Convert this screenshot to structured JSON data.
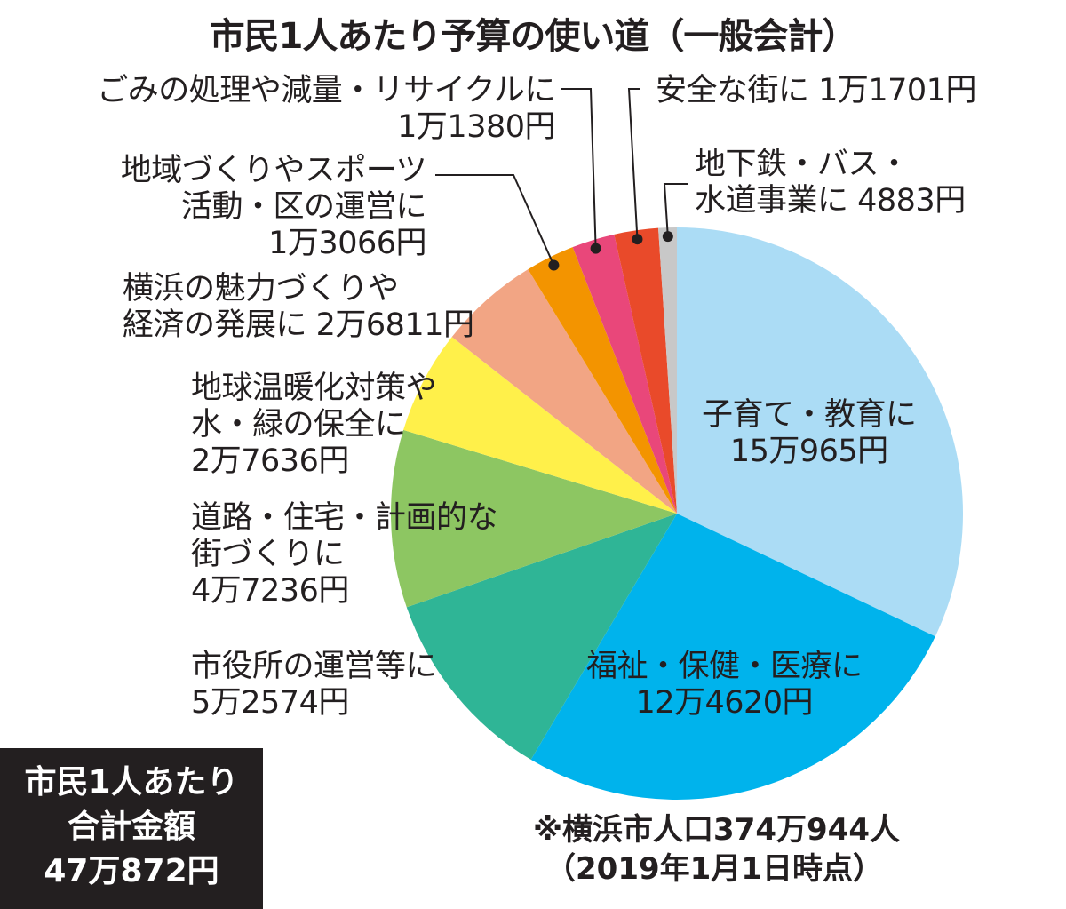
{
  "chart_data": {
    "type": "pie",
    "title": "市民1人あたり予算の使い道（一般会計）",
    "unit": "円",
    "slices": [
      {
        "name": "子育て・教育",
        "value": 150965,
        "label_lines": [
          "子育て・教育に",
          "15万965円"
        ],
        "color": "#abdcf5"
      },
      {
        "name": "福祉・保健・医療",
        "value": 124620,
        "label_lines": [
          "福祉・保健・医療に",
          "12万4620円"
        ],
        "color": "#00b3ec"
      },
      {
        "name": "市役所の運営等",
        "value": 52574,
        "label_lines": [
          "市役所の運営等に",
          "5万2574円"
        ],
        "color": "#2fb596"
      },
      {
        "name": "道路・住宅・計画的な街づくり",
        "value": 47236,
        "label_lines": [
          "道路・住宅・計画的な",
          "街づくりに",
          "4万7236円"
        ],
        "color": "#8dc662"
      },
      {
        "name": "地球温暖化対策や水・緑の保全",
        "value": 27636,
        "label_lines": [
          "地球温暖化対策や",
          "水・緑の保全に",
          "2万7636円"
        ],
        "color": "#fff04a"
      },
      {
        "name": "横浜の魅力づくりや経済の発展",
        "value": 26811,
        "label_lines": [
          "横浜の魅力づくりや",
          "経済の発展に 2万6811円"
        ],
        "color": "#f2a584"
      },
      {
        "name": "地域づくりやスポーツ活動・区の運営",
        "value": 13066,
        "label_lines": [
          "地域づくりやスポーツ",
          "活動・区の運営に",
          "1万3066円"
        ],
        "color": "#f39400"
      },
      {
        "name": "ごみの処理や減量・リサイクル",
        "value": 11380,
        "label_lines": [
          "ごみの処理や減量・リサイクルに",
          "1万1380円"
        ],
        "color": "#e9477a"
      },
      {
        "name": "安全な街",
        "value": 11701,
        "label_lines": [
          "安全な街に 1万1701円"
        ],
        "color": "#e94a2a"
      },
      {
        "name": "地下鉄・バス・水道事業",
        "value": 4883,
        "label_lines": [
          "地下鉄・バス・",
          "水道事業に 4883円"
        ],
        "color": "#c8c8c8"
      }
    ]
  },
  "total_box": {
    "lines": [
      "市民1人あたり",
      "合計金額",
      "47万872円"
    ]
  },
  "note": {
    "line1": "※横浜市人口374万944人",
    "line2": "（2019年1月1日時点）"
  }
}
